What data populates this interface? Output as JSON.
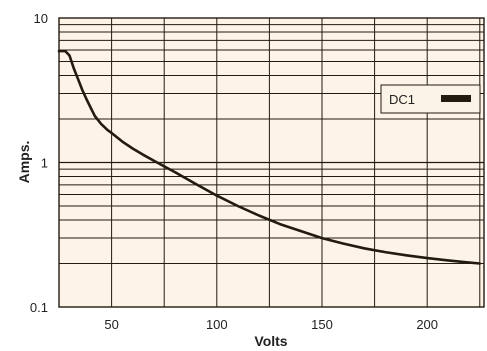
{
  "chart_data": {
    "type": "line",
    "title": "",
    "xlabel": "Volts",
    "ylabel": "Amps.",
    "xlim": [
      25,
      227
    ],
    "ylim": [
      0.1,
      10
    ],
    "y_scale": "log",
    "grid": true,
    "background_color": "#fdf3e6",
    "line_color": "#231a10",
    "x_ticks": [
      50,
      100,
      150,
      200
    ],
    "x_tick_labels": [
      "50",
      "100",
      "150",
      "200"
    ],
    "y_ticks": [
      0.1,
      1,
      10
    ],
    "y_tick_labels": [
      "0.1",
      "1",
      "10"
    ],
    "legend": {
      "position": "right",
      "entries": [
        "DC1"
      ]
    },
    "series": [
      {
        "name": "DC1",
        "x": [
          25,
          28,
          30,
          32,
          34,
          36,
          38,
          40,
          42,
          45,
          48,
          50,
          55,
          60,
          65,
          70,
          75,
          80,
          90,
          100,
          110,
          120,
          130,
          140,
          150,
          160,
          170,
          180,
          190,
          200,
          210,
          220,
          225
        ],
        "y": [
          5.9,
          5.9,
          5.5,
          4.5,
          3.8,
          3.2,
          2.75,
          2.4,
          2.1,
          1.85,
          1.68,
          1.6,
          1.4,
          1.25,
          1.13,
          1.03,
          0.94,
          0.86,
          0.71,
          0.59,
          0.5,
          0.43,
          0.375,
          0.335,
          0.3,
          0.275,
          0.255,
          0.24,
          0.228,
          0.218,
          0.21,
          0.203,
          0.2
        ]
      }
    ]
  }
}
